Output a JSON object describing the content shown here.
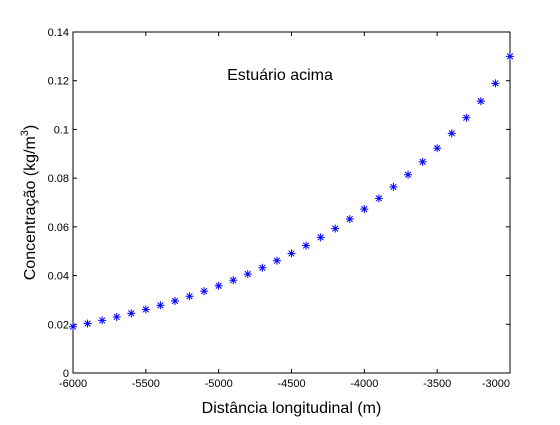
{
  "chart_data": {
    "type": "scatter",
    "title": "",
    "xlabel": "Distância longitudinal (m)",
    "ylabel": "Concentração (kg/m",
    "ylabel_superscript": "3",
    "ylabel_suffix": ")",
    "annotation": "Estuário acima",
    "xlim": [
      -6000,
      -3000
    ],
    "ylim": [
      0,
      0.14
    ],
    "grid": false,
    "marker": "asterisk",
    "marker_color": "#0000ff",
    "x_ticks": [
      -6000,
      -5500,
      -5000,
      -4500,
      -4000,
      -3500,
      -3000
    ],
    "x_tick_labels": [
      "-6000",
      "-5500",
      "-5000",
      "-4500",
      "-4000",
      "-3500",
      "-3000"
    ],
    "y_ticks": [
      0,
      0.02,
      0.04,
      0.06,
      0.08,
      0.1,
      0.12,
      0.14
    ],
    "y_tick_labels": [
      "0",
      "0.02",
      "0.04",
      "0.06",
      "0.08",
      "0.1",
      "0.12",
      "0.14"
    ],
    "series": [
      {
        "x": [
          -6000,
          -5900,
          -5800,
          -5700,
          -5600,
          -5500,
          -5400,
          -5300,
          -5200,
          -5100,
          -5000,
          -4900,
          -4800,
          -4700,
          -4600,
          -4500,
          -4400,
          -4300,
          -4200,
          -4100,
          -4000,
          -3900,
          -3800,
          -3700,
          -3600,
          -3500,
          -3400,
          -3300,
          -3200,
          -3100,
          -3000
        ],
        "y": [
          0.019,
          0.0203,
          0.0216,
          0.023,
          0.0245,
          0.0261,
          0.0278,
          0.0296,
          0.0315,
          0.0336,
          0.0358,
          0.0381,
          0.0406,
          0.0432,
          0.0461,
          0.0491,
          0.0523,
          0.0557,
          0.0593,
          0.0632,
          0.0673,
          0.0717,
          0.0764,
          0.0814,
          0.0867,
          0.0923,
          0.0984,
          0.1048,
          0.1116,
          0.1189,
          0.13
        ]
      }
    ]
  }
}
